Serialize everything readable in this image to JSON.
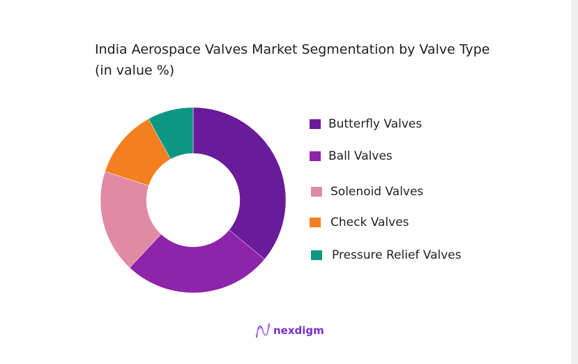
{
  "chart_data": {
    "type": "pie",
    "donut": true,
    "title": "India Aerospace Valves Market Segmentation by Valve Type (in value %)",
    "categories": [
      "Butterfly Valves",
      "Ball Valves",
      "Solenoid Valves",
      "Check Valves",
      "Pressure Relief Valves"
    ],
    "values": [
      36,
      26,
      18,
      12,
      8
    ],
    "colors": [
      "#6a1b9a",
      "#8e24aa",
      "#e08aa3",
      "#f47f20",
      "#0e9684"
    ],
    "legend_position": "right"
  },
  "brand": {
    "name": "nexdigm"
  }
}
